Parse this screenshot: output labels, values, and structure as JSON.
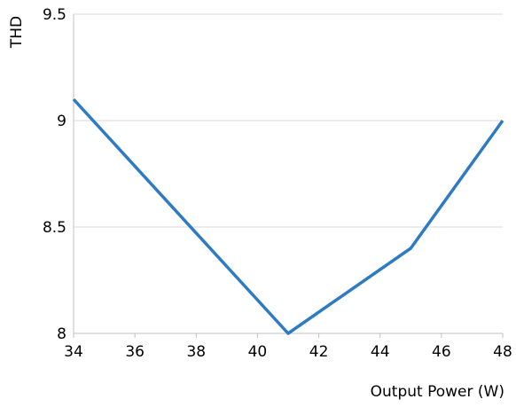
{
  "chart_data": {
    "type": "line",
    "title": "",
    "xlabel": "Output Power (W)",
    "ylabel": "THD",
    "xlim": [
      34,
      48
    ],
    "ylim": [
      8,
      9.5
    ],
    "x_ticks": [
      34,
      36,
      38,
      40,
      42,
      44,
      46,
      48
    ],
    "y_ticks": [
      8,
      8.5,
      9,
      9.5
    ],
    "x_tick_labels": [
      "34",
      "36",
      "38",
      "40",
      "42",
      "44",
      "46",
      "48"
    ],
    "y_tick_labels": [
      "8",
      "8.5",
      "9",
      "9.5"
    ],
    "grid": "horizontal",
    "legend": "none",
    "series": [
      {
        "color": "#2e7bc4",
        "points": [
          {
            "x": 34,
            "y": 9.1
          },
          {
            "x": 41,
            "y": 8.0
          },
          {
            "x": 45,
            "y": 8.4
          },
          {
            "x": 48,
            "y": 9.0
          }
        ]
      }
    ]
  }
}
